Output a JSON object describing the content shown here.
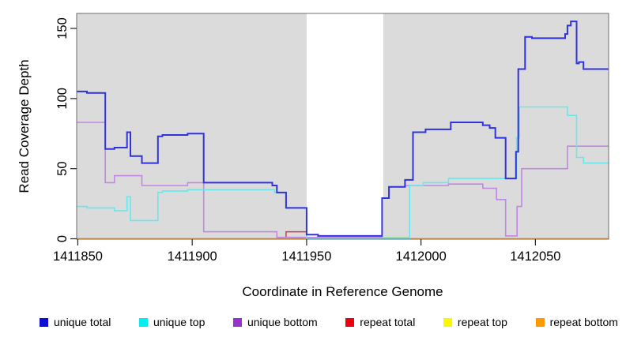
{
  "chart_data": {
    "type": "line",
    "title": "",
    "xlabel": "Coordinate in Reference Genome",
    "ylabel": "Read Coverage Depth",
    "x_domain": [
      1411849.5,
      1412082
    ],
    "ylim": [
      0,
      160
    ],
    "x_ticks": [
      1411850,
      1411900,
      1411950,
      1412000,
      1412050
    ],
    "y_ticks": [
      0,
      50,
      100,
      150
    ],
    "plot_background": "#DBDBDB",
    "gap_region": {
      "x_start": 1411950,
      "x_end": 1411983.5,
      "color": "#FFFFFF"
    },
    "zero_overlap_segment": {
      "x_start": 1411950,
      "x_end": 1411995,
      "value": 0,
      "color": "#7FD98C"
    },
    "grid": "off",
    "legend_position": "bottom",
    "step_series": [
      {
        "name": "repeat total",
        "color": "#D23A52",
        "width": 1.5,
        "steps": [
          [
            1411849.5,
            0
          ],
          [
            1411941,
            5
          ],
          [
            1411950,
            0
          ]
        ]
      },
      {
        "name": "repeat top",
        "color": "#F0F000",
        "width": 1.5,
        "steps": [
          [
            1411849.5,
            0
          ]
        ]
      },
      {
        "name": "repeat bottom",
        "color": "#FF9D2E",
        "width": 2,
        "steps": [
          [
            1411849.5,
            0
          ]
        ]
      },
      {
        "name": "unique bottom",
        "color": "#C287E0",
        "width": 1.6,
        "steps": [
          [
            1411849.5,
            83
          ],
          [
            1411862,
            40
          ],
          [
            1411866,
            45
          ],
          [
            1411878,
            38
          ],
          [
            1411898,
            40
          ],
          [
            1411905,
            5
          ],
          [
            1411937,
            1
          ],
          [
            1411983,
            29
          ],
          [
            1411986,
            37
          ],
          [
            1411993,
            38
          ],
          [
            1412012,
            39
          ],
          [
            1412027,
            36
          ],
          [
            1412033,
            28
          ],
          [
            1412037,
            2
          ],
          [
            1412042,
            23
          ],
          [
            1412044,
            50
          ],
          [
            1412064,
            66
          ]
        ]
      },
      {
        "name": "unique top",
        "color": "#66E8EC",
        "width": 1.6,
        "steps": [
          [
            1411849.5,
            23
          ],
          [
            1411854,
            22
          ],
          [
            1411866,
            20
          ],
          [
            1411871.5,
            30
          ],
          [
            1411873,
            13
          ],
          [
            1411885,
            33
          ],
          [
            1411887,
            34
          ],
          [
            1411898,
            35
          ],
          [
            1411936,
            33
          ],
          [
            1411941,
            22
          ],
          [
            1411950,
            0
          ],
          [
            1411995,
            38
          ],
          [
            1412001,
            40
          ],
          [
            1412012,
            43
          ],
          [
            1412041.8,
            72
          ],
          [
            1412043,
            94
          ],
          [
            1412064,
            88
          ],
          [
            1412068,
            58
          ],
          [
            1412071,
            54
          ]
        ]
      },
      {
        "name": "unique total",
        "color": "#3032DC",
        "width": 2,
        "steps": [
          [
            1411849.5,
            105
          ],
          [
            1411854,
            104
          ],
          [
            1411862,
            64
          ],
          [
            1411866,
            65
          ],
          [
            1411871.5,
            76
          ],
          [
            1411873,
            59
          ],
          [
            1411878,
            54
          ],
          [
            1411885,
            73
          ],
          [
            1411887,
            74
          ],
          [
            1411898,
            75
          ],
          [
            1411905,
            40
          ],
          [
            1411935,
            38
          ],
          [
            1411937,
            33
          ],
          [
            1411941,
            22
          ],
          [
            1411950,
            3
          ],
          [
            1411955,
            2
          ],
          [
            1411983,
            29
          ],
          [
            1411986,
            37
          ],
          [
            1411993,
            42
          ],
          [
            1411996.5,
            76
          ],
          [
            1412002,
            78
          ],
          [
            1412013,
            83
          ],
          [
            1412027,
            81
          ],
          [
            1412030,
            79
          ],
          [
            1412032.5,
            72
          ],
          [
            1412037,
            43
          ],
          [
            1412041.5,
            62
          ],
          [
            1412042.5,
            121
          ],
          [
            1412045.5,
            144
          ],
          [
            1412048.5,
            143
          ],
          [
            1412063,
            146
          ],
          [
            1412064,
            152
          ],
          [
            1412065.5,
            155
          ],
          [
            1412068,
            125
          ],
          [
            1412069,
            126
          ],
          [
            1412071,
            121
          ]
        ]
      }
    ]
  },
  "legend": {
    "items": [
      {
        "label": "unique total",
        "color": "#0D0DD6"
      },
      {
        "label": "unique top",
        "color": "#00EFEF"
      },
      {
        "label": "unique bottom",
        "color": "#9932CC"
      },
      {
        "label": "repeat total",
        "color": "#EE0011"
      },
      {
        "label": "repeat top",
        "color": "#F8F800"
      },
      {
        "label": "repeat bottom",
        "color": "#FF9900"
      }
    ]
  }
}
